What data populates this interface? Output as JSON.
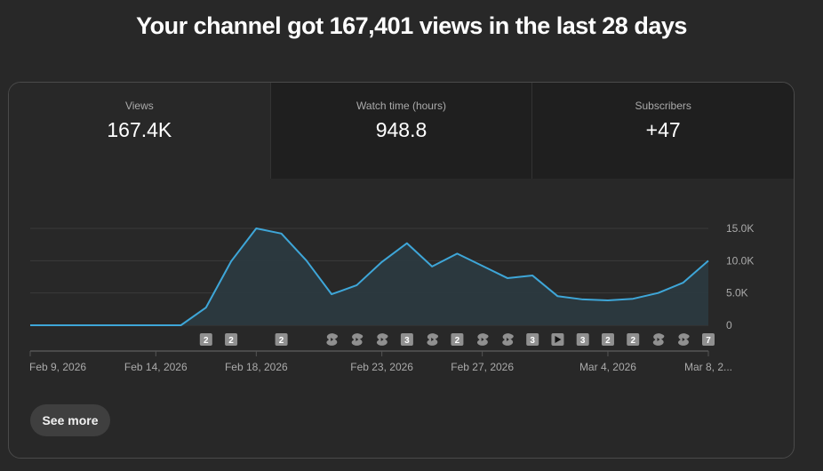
{
  "header": {
    "title": "Your channel got 167,401 views in the last 28 days"
  },
  "tabs": [
    {
      "label": "Views",
      "value": "167.4K"
    },
    {
      "label": "Watch time (hours)",
      "value": "948.8"
    },
    {
      "label": "Subscribers",
      "value": "+47"
    }
  ],
  "see_more_label": "See more",
  "colors": {
    "line": "#3ea6d8",
    "fill": "#2b3a40",
    "badge": "#909090"
  },
  "chart_data": {
    "type": "area",
    "series": [
      {
        "name": "Views",
        "values": [
          0,
          0,
          0,
          0,
          0,
          0,
          0,
          2750,
          9900,
          15000,
          14200,
          10000,
          4800,
          6200,
          9800,
          12700,
          9100,
          11100,
          9200,
          7300,
          7700,
          4500,
          4000,
          3850,
          4100,
          5000,
          6600,
          10000
        ]
      }
    ],
    "ylim": [
      0,
      15000
    ],
    "yticks": [
      {
        "v": 0,
        "label": "0"
      },
      {
        "v": 5000,
        "label": "5.0K"
      },
      {
        "v": 10000,
        "label": "10.0K"
      },
      {
        "v": 15000,
        "label": "15.0K"
      }
    ],
    "xticks": [
      {
        "i": 0,
        "label": "Feb 9, 2026"
      },
      {
        "i": 5,
        "label": "Feb 14, 2026"
      },
      {
        "i": 9,
        "label": "Feb 18, 2026"
      },
      {
        "i": 14,
        "label": "Feb 23, 2026"
      },
      {
        "i": 18,
        "label": "Feb 27, 2026"
      },
      {
        "i": 23,
        "label": "Mar 4, 2026"
      },
      {
        "i": 27,
        "label": "Mar 8, 2..."
      }
    ],
    "markers": [
      {
        "i": 7,
        "type": "count",
        "label": "2"
      },
      {
        "i": 8,
        "type": "count",
        "label": "2"
      },
      {
        "i": 10,
        "type": "count",
        "label": "2"
      },
      {
        "i": 12,
        "type": "shorts"
      },
      {
        "i": 13,
        "type": "shorts"
      },
      {
        "i": 14,
        "type": "shorts"
      },
      {
        "i": 15,
        "type": "count",
        "label": "3"
      },
      {
        "i": 16,
        "type": "shorts"
      },
      {
        "i": 17,
        "type": "count",
        "label": "2"
      },
      {
        "i": 18,
        "type": "shorts"
      },
      {
        "i": 19,
        "type": "shorts"
      },
      {
        "i": 20,
        "type": "count",
        "label": "3"
      },
      {
        "i": 21,
        "type": "video"
      },
      {
        "i": 22,
        "type": "count",
        "label": "3"
      },
      {
        "i": 23,
        "type": "count",
        "label": "2"
      },
      {
        "i": 24,
        "type": "count",
        "label": "2"
      },
      {
        "i": 25,
        "type": "shorts"
      },
      {
        "i": 26,
        "type": "shorts"
      },
      {
        "i": 27,
        "type": "count",
        "label": "7"
      }
    ]
  }
}
